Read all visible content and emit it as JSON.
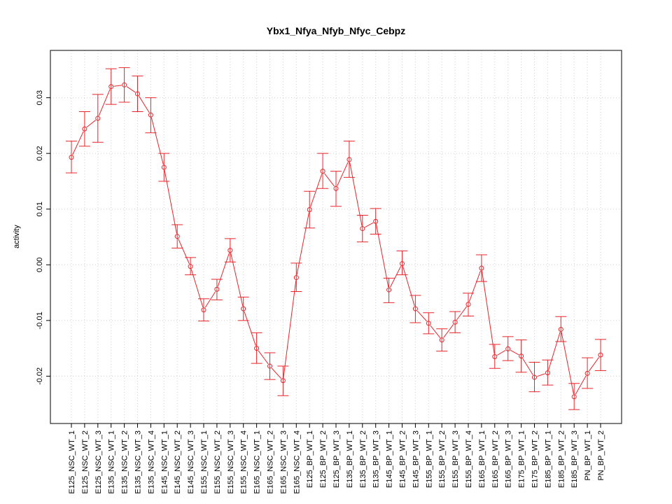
{
  "chart_data": {
    "type": "line",
    "title": "Ybx1_Nfya_Nfyb_Nfyc_Cebpz",
    "xlabel": "",
    "ylabel": "activity",
    "ylim": [
      -0.0285,
      0.0385
    ],
    "yticks": [
      -0.02,
      -0.01,
      0.0,
      0.01,
      0.02,
      0.03
    ],
    "ytick_labels": [
      "-0.02",
      "-0.01",
      "0.00",
      "0.01",
      "0.02",
      "0.03"
    ],
    "grid": true,
    "color": "#e8242a",
    "categories": [
      "E125_NSC_WT_1",
      "E125_NSC_WT_2",
      "E125_NSC_WT_3",
      "E135_NSC_WT_1",
      "E135_NSC_WT_2",
      "E135_NSC_WT_3",
      "E135_NSC_WT_4",
      "E145_NSC_WT_1",
      "E145_NSC_WT_2",
      "E145_NSC_WT_3",
      "E155_NSC_WT_1",
      "E155_NSC_WT_2",
      "E155_NSC_WT_3",
      "E155_NSC_WT_4",
      "E165_NSC_WT_1",
      "E165_NSC_WT_2",
      "E165_NSC_WT_3",
      "E165_NSC_WT_4",
      "E125_BP_WT_1",
      "E125_BP_WT_2",
      "E125_BP_WT_3",
      "E135_BP_WT_1",
      "E135_BP_WT_2",
      "E135_BP_WT_3",
      "E145_BP_WT_1",
      "E145_BP_WT_2",
      "E145_BP_WT_3",
      "E155_BP_WT_1",
      "E155_BP_WT_2",
      "E155_BP_WT_3",
      "E155_BP_WT_4",
      "E165_BP_WT_1",
      "E165_BP_WT_2",
      "E165_BP_WT_3",
      "E175_BP_WT_1",
      "E175_BP_WT_2",
      "E185_BP_WT_1",
      "E185_BP_WT_2",
      "E185_BP_WT_3",
      "PN_BP_WT_1",
      "PN_BP_WT_2"
    ],
    "values": [
      0.0193,
      0.0244,
      0.0263,
      0.032,
      0.0323,
      0.0307,
      0.0269,
      0.0175,
      0.0051,
      -0.0003,
      -0.0081,
      -0.0044,
      0.0026,
      -0.0079,
      -0.015,
      -0.0182,
      -0.0208,
      -0.0023,
      0.0099,
      0.0168,
      0.0137,
      0.0189,
      0.0065,
      0.0078,
      -0.0045,
      0.0002,
      -0.0079,
      -0.0105,
      -0.0135,
      -0.0103,
      -0.0071,
      -0.0006,
      -0.0165,
      -0.0151,
      -0.0164,
      -0.0202,
      -0.0194,
      -0.0116,
      -0.0237,
      -0.0195,
      -0.0162
    ],
    "error_low": [
      0.0165,
      0.0213,
      0.022,
      0.0288,
      0.0292,
      0.0275,
      0.0237,
      0.015,
      0.003,
      -0.0018,
      -0.0101,
      -0.0063,
      0.0005,
      -0.01,
      -0.0177,
      -0.0206,
      -0.0235,
      -0.0048,
      0.0066,
      0.0137,
      0.0105,
      0.0157,
      0.0041,
      0.0055,
      -0.0068,
      -0.0018,
      -0.0104,
      -0.0124,
      -0.0155,
      -0.0122,
      -0.0092,
      -0.003,
      -0.0186,
      -0.0172,
      -0.0193,
      -0.0228,
      -0.0216,
      -0.0138,
      -0.026,
      -0.0222,
      -0.019
    ],
    "error_high": [
      0.0222,
      0.0275,
      0.0306,
      0.0352,
      0.0354,
      0.0339,
      0.03,
      0.02,
      0.0072,
      0.0013,
      -0.0061,
      -0.0026,
      0.0047,
      -0.0058,
      -0.0122,
      -0.0158,
      -0.0182,
      0.0003,
      0.0132,
      0.02,
      0.0168,
      0.0222,
      0.0089,
      0.0101,
      -0.0024,
      0.0025,
      -0.0055,
      -0.0086,
      -0.0115,
      -0.0084,
      -0.0051,
      0.0018,
      -0.0143,
      -0.0129,
      -0.0135,
      -0.0175,
      -0.0171,
      -0.0093,
      -0.0213,
      -0.0167,
      -0.0134
    ]
  }
}
